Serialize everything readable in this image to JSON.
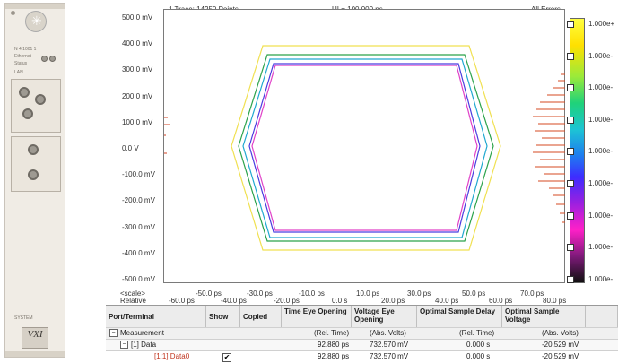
{
  "module": {
    "labels": [
      "N 4 1001 1",
      "Ethernet",
      "Status",
      "LAN",
      "SYSTEM"
    ],
    "badge": "VXI"
  },
  "eye_diagram": {
    "info_left": "1 Trace: 14250 Points",
    "info_center": "UI = 100.000 ps",
    "info_right": "All Errors",
    "y_ticks": [
      "500.0 mV",
      "400.0 mV",
      "300.0 mV",
      "200.0 mV",
      "100.0 mV",
      "0.0 V",
      "-100.0 mV",
      "-200.0 mV",
      "-300.0 mV",
      "-400.0 mV",
      "-500.0 mV"
    ],
    "x_scale_label": "<scale>",
    "x_rel_label": "Relative",
    "x_ticks_top": [
      "-50.0 ps",
      "-30.0 ps",
      "-10.0 ps",
      "10.0 ps",
      "30.0 ps",
      "50.0 ps",
      "70.0 ps"
    ],
    "x_ticks_bottom": [
      "-60.0 ps",
      "-40.0 ps",
      "-20.0 ps",
      "0.0 s",
      "20.0 ps",
      "40.0 ps",
      "60.0 ps",
      "80.0 ps"
    ]
  },
  "colorbar": {
    "labels": [
      "1.000e+",
      "1.000e-",
      "1.000e-",
      "1.000e-",
      "1.000e-",
      "1.000e-",
      "1.000e-",
      "1.000e-",
      "1.000e-"
    ]
  },
  "table": {
    "headers": [
      "Port/Terminal",
      "Show",
      "Copied",
      "Time Eye Opening",
      "Voltage Eye Opening",
      "Optimal Sample Delay",
      "Optimal Sample Voltage"
    ],
    "rows": [
      {
        "name": "Measurement",
        "c1": "(Rel. Time)",
        "c2": "(Abs. Volts)",
        "c3": "(Rel. Time)",
        "c4": "(Abs. Volts)"
      },
      {
        "name": "[1] Data",
        "c1": "92.880 ps",
        "c2": "732.570 mV",
        "c3": "0.000 s",
        "c4": "-20.529 mV"
      },
      {
        "name": "[1:1] Data0",
        "c1": "92.880 ps",
        "c2": "732.570 mV",
        "c3": "0.000 s",
        "c4": "-20.529 mV"
      }
    ]
  }
}
